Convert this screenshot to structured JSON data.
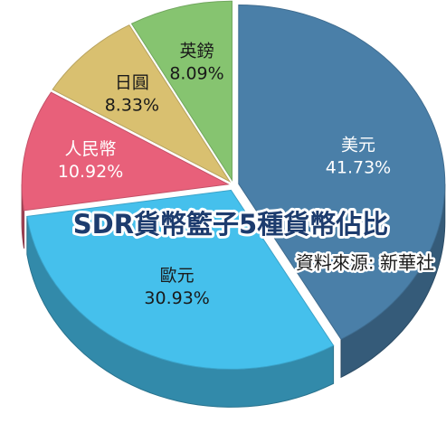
{
  "chart_data": {
    "type": "pie",
    "title": "SDR貨幣籃子5種貨幣佔比",
    "source": "資料來源: 新華社",
    "categories": [
      "美元",
      "歐元",
      "人民幣",
      "日圓",
      "英鎊"
    ],
    "values": [
      41.73,
      30.93,
      10.92,
      8.33,
      8.09
    ],
    "value_labels": [
      "41.73%",
      "30.93%",
      "10.92%",
      "8.33%",
      "8.09%"
    ],
    "colors": [
      "#4a7fa8",
      "#45c0ec",
      "#e8607a",
      "#d9c070",
      "#86c470"
    ]
  }
}
